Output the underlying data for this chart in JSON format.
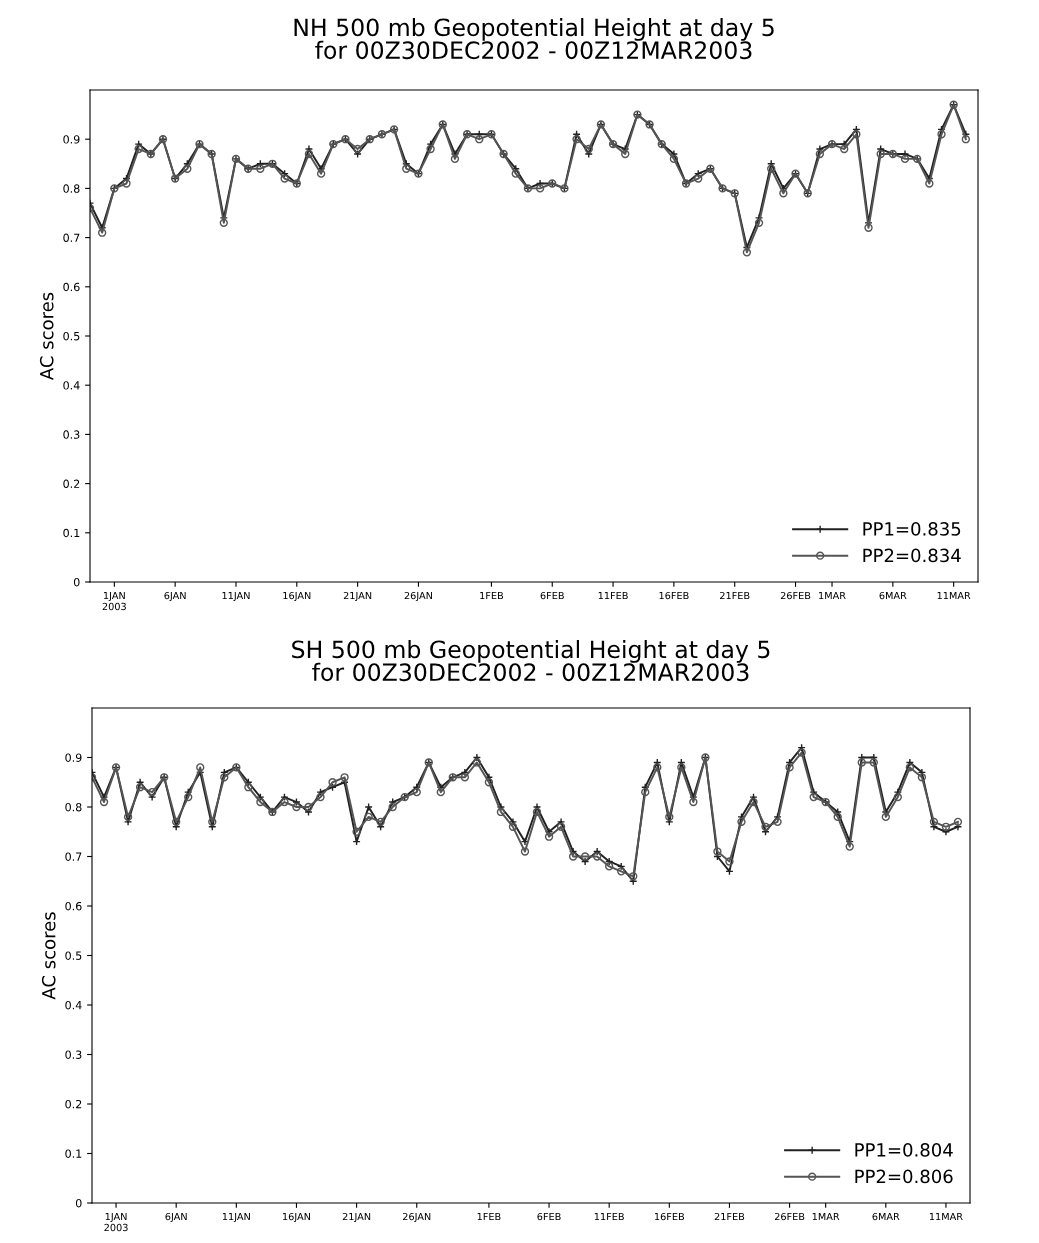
{
  "chart_data": [
    {
      "type": "line",
      "title": "NH 500 mb Geopotential Height at day 5\nfor 00Z30DEC2002 - 00Z12MAR2003",
      "ylabel": "AC scores",
      "x": [
        "2002-12-30",
        "2002-12-31",
        "2003-01-01",
        "2003-01-02",
        "2003-01-03",
        "2003-01-04",
        "2003-01-05",
        "2003-01-06",
        "2003-01-07",
        "2003-01-08",
        "2003-01-09",
        "2003-01-10",
        "2003-01-11",
        "2003-01-12",
        "2003-01-13",
        "2003-01-14",
        "2003-01-15",
        "2003-01-16",
        "2003-01-17",
        "2003-01-18",
        "2003-01-19",
        "2003-01-20",
        "2003-01-21",
        "2003-01-22",
        "2003-01-23",
        "2003-01-24",
        "2003-01-25",
        "2003-01-26",
        "2003-01-27",
        "2003-01-28",
        "2003-01-29",
        "2003-01-30",
        "2003-01-31",
        "2003-02-01",
        "2003-02-02",
        "2003-02-03",
        "2003-02-04",
        "2003-02-05",
        "2003-02-06",
        "2003-02-07",
        "2003-02-08",
        "2003-02-09",
        "2003-02-10",
        "2003-02-11",
        "2003-02-12",
        "2003-02-13",
        "2003-02-14",
        "2003-02-15",
        "2003-02-16",
        "2003-02-17",
        "2003-02-18",
        "2003-02-19",
        "2003-02-20",
        "2003-02-21",
        "2003-02-22",
        "2003-02-23",
        "2003-02-24",
        "2003-02-25",
        "2003-02-26",
        "2003-02-27",
        "2003-02-28",
        "2003-03-01",
        "2003-03-02",
        "2003-03-03",
        "2003-03-04",
        "2003-03-05",
        "2003-03-06",
        "2003-03-07",
        "2003-03-08",
        "2003-03-09",
        "2003-03-10",
        "2003-03-11",
        "2003-03-12"
      ],
      "series": [
        {
          "name": "PP1=0.835",
          "color": "#222222",
          "marker": "cross",
          "values": [
            0.77,
            0.72,
            0.8,
            0.82,
            0.89,
            0.87,
            0.9,
            0.82,
            0.85,
            0.89,
            0.87,
            0.74,
            0.86,
            0.84,
            0.85,
            0.85,
            0.83,
            0.81,
            0.88,
            0.84,
            0.89,
            0.9,
            0.87,
            0.9,
            0.91,
            0.92,
            0.85,
            0.83,
            0.89,
            0.93,
            0.87,
            0.91,
            0.91,
            0.91,
            0.87,
            0.84,
            0.8,
            0.81,
            0.81,
            0.8,
            0.91,
            0.87,
            0.93,
            0.89,
            0.88,
            0.95,
            0.93,
            0.89,
            0.87,
            0.81,
            0.83,
            0.84,
            0.8,
            0.79,
            0.68,
            0.74,
            0.85,
            0.8,
            0.83,
            0.79,
            0.88,
            0.89,
            0.89,
            0.92,
            0.73,
            0.88,
            0.87,
            0.87,
            0.86,
            0.82,
            0.92,
            0.97,
            0.91
          ]
        },
        {
          "name": "PP2=0.834",
          "color": "#555555",
          "marker": "circle",
          "values": [
            0.76,
            0.71,
            0.8,
            0.81,
            0.88,
            0.87,
            0.9,
            0.82,
            0.84,
            0.89,
            0.87,
            0.73,
            0.86,
            0.84,
            0.84,
            0.85,
            0.82,
            0.81,
            0.87,
            0.83,
            0.89,
            0.9,
            0.88,
            0.9,
            0.91,
            0.92,
            0.84,
            0.83,
            0.88,
            0.93,
            0.86,
            0.91,
            0.9,
            0.91,
            0.87,
            0.83,
            0.8,
            0.8,
            0.81,
            0.8,
            0.9,
            0.88,
            0.93,
            0.89,
            0.87,
            0.95,
            0.93,
            0.89,
            0.86,
            0.81,
            0.82,
            0.84,
            0.8,
            0.79,
            0.67,
            0.73,
            0.84,
            0.79,
            0.83,
            0.79,
            0.87,
            0.89,
            0.88,
            0.91,
            0.72,
            0.87,
            0.87,
            0.86,
            0.86,
            0.81,
            0.91,
            0.97,
            0.9
          ]
        }
      ],
      "xlim": [
        "2002-12-30",
        "2003-03-13"
      ],
      "ylim": [
        0,
        1
      ],
      "yticks": [
        0,
        0.1,
        0.2,
        0.3,
        0.4,
        0.5,
        0.6,
        0.7,
        0.8,
        0.9
      ],
      "xticks": [
        {
          "value": "2003-01-01",
          "label": "1JAN\n2003"
        },
        {
          "value": "2003-01-06",
          "label": "6JAN"
        },
        {
          "value": "2003-01-11",
          "label": "11JAN"
        },
        {
          "value": "2003-01-16",
          "label": "16JAN"
        },
        {
          "value": "2003-01-21",
          "label": "21JAN"
        },
        {
          "value": "2003-01-26",
          "label": "26JAN"
        },
        {
          "value": "2003-02-01",
          "label": "1FEB"
        },
        {
          "value": "2003-02-06",
          "label": "6FEB"
        },
        {
          "value": "2003-02-11",
          "label": "11FEB"
        },
        {
          "value": "2003-02-16",
          "label": "16FEB"
        },
        {
          "value": "2003-02-21",
          "label": "21FEB"
        },
        {
          "value": "2003-02-26",
          "label": "26FEB"
        },
        {
          "value": "2003-03-01",
          "label": "1MAR"
        },
        {
          "value": "2003-03-06",
          "label": "6MAR"
        },
        {
          "value": "2003-03-11",
          "label": "11MAR"
        }
      ],
      "legend": "bottom right",
      "line_style": "solid",
      "grid": false
    },
    {
      "type": "line",
      "title": "SH 500 mb Geopotential Height at day 5\nfor 00Z30DEC2002 - 00Z12MAR2003",
      "ylabel": "AC scores",
      "x": [
        "2002-12-30",
        "2002-12-31",
        "2003-01-01",
        "2003-01-02",
        "2003-01-03",
        "2003-01-04",
        "2003-01-05",
        "2003-01-06",
        "2003-01-07",
        "2003-01-08",
        "2003-01-09",
        "2003-01-10",
        "2003-01-11",
        "2003-01-12",
        "2003-01-13",
        "2003-01-14",
        "2003-01-15",
        "2003-01-16",
        "2003-01-17",
        "2003-01-18",
        "2003-01-19",
        "2003-01-20",
        "2003-01-21",
        "2003-01-22",
        "2003-01-23",
        "2003-01-24",
        "2003-01-25",
        "2003-01-26",
        "2003-01-27",
        "2003-01-28",
        "2003-01-29",
        "2003-01-30",
        "2003-01-31",
        "2003-02-01",
        "2003-02-02",
        "2003-02-03",
        "2003-02-04",
        "2003-02-05",
        "2003-02-06",
        "2003-02-07",
        "2003-02-08",
        "2003-02-09",
        "2003-02-10",
        "2003-02-11",
        "2003-02-12",
        "2003-02-13",
        "2003-02-14",
        "2003-02-15",
        "2003-02-16",
        "2003-02-17",
        "2003-02-18",
        "2003-02-19",
        "2003-02-20",
        "2003-02-21",
        "2003-02-22",
        "2003-02-23",
        "2003-02-24",
        "2003-02-25",
        "2003-02-26",
        "2003-02-27",
        "2003-02-28",
        "2003-03-01",
        "2003-03-02",
        "2003-03-03",
        "2003-03-04",
        "2003-03-05",
        "2003-03-06",
        "2003-03-07",
        "2003-03-08",
        "2003-03-09",
        "2003-03-10",
        "2003-03-11",
        "2003-03-12"
      ],
      "series": [
        {
          "name": "PP1=0.804",
          "color": "#222222",
          "marker": "cross",
          "values": [
            0.87,
            0.82,
            0.88,
            0.77,
            0.85,
            0.82,
            0.86,
            0.76,
            0.83,
            0.87,
            0.76,
            0.87,
            0.88,
            0.85,
            0.82,
            0.79,
            0.82,
            0.81,
            0.79,
            0.83,
            0.84,
            0.85,
            0.73,
            0.8,
            0.76,
            0.81,
            0.82,
            0.84,
            0.89,
            0.84,
            0.86,
            0.87,
            0.9,
            0.86,
            0.8,
            0.77,
            0.73,
            0.8,
            0.75,
            0.77,
            0.71,
            0.69,
            0.71,
            0.69,
            0.68,
            0.65,
            0.84,
            0.89,
            0.77,
            0.89,
            0.82,
            0.9,
            0.7,
            0.67,
            0.78,
            0.82,
            0.75,
            0.78,
            0.89,
            0.92,
            0.83,
            0.81,
            0.79,
            0.73,
            0.9,
            0.9,
            0.79,
            0.83,
            0.89,
            0.87,
            0.76,
            0.75,
            0.76
          ]
        },
        {
          "name": "PP2=0.806",
          "color": "#555555",
          "marker": "circle",
          "values": [
            0.86,
            0.81,
            0.88,
            0.78,
            0.84,
            0.83,
            0.86,
            0.77,
            0.82,
            0.88,
            0.77,
            0.86,
            0.88,
            0.84,
            0.81,
            0.79,
            0.81,
            0.8,
            0.8,
            0.82,
            0.85,
            0.86,
            0.75,
            0.78,
            0.77,
            0.8,
            0.82,
            0.83,
            0.89,
            0.83,
            0.86,
            0.86,
            0.89,
            0.85,
            0.79,
            0.76,
            0.71,
            0.79,
            0.74,
            0.76,
            0.7,
            0.7,
            0.7,
            0.68,
            0.67,
            0.66,
            0.83,
            0.88,
            0.78,
            0.88,
            0.81,
            0.9,
            0.71,
            0.69,
            0.77,
            0.81,
            0.76,
            0.77,
            0.88,
            0.91,
            0.82,
            0.81,
            0.78,
            0.72,
            0.89,
            0.89,
            0.78,
            0.82,
            0.88,
            0.86,
            0.77,
            0.76,
            0.77
          ]
        }
      ],
      "xlim": [
        "2002-12-30",
        "2003-03-13"
      ],
      "ylim": [
        0,
        1
      ],
      "yticks": [
        0,
        0.1,
        0.2,
        0.3,
        0.4,
        0.5,
        0.6,
        0.7,
        0.8,
        0.9
      ],
      "xticks": [
        {
          "value": "2003-01-01",
          "label": "1JAN\n2003"
        },
        {
          "value": "2003-01-06",
          "label": "6JAN"
        },
        {
          "value": "2003-01-11",
          "label": "11JAN"
        },
        {
          "value": "2003-01-16",
          "label": "16JAN"
        },
        {
          "value": "2003-01-21",
          "label": "21JAN"
        },
        {
          "value": "2003-01-26",
          "label": "26JAN"
        },
        {
          "value": "2003-02-01",
          "label": "1FEB"
        },
        {
          "value": "2003-02-06",
          "label": "6FEB"
        },
        {
          "value": "2003-02-11",
          "label": "11FEB"
        },
        {
          "value": "2003-02-16",
          "label": "16FEB"
        },
        {
          "value": "2003-02-21",
          "label": "21FEB"
        },
        {
          "value": "2003-02-26",
          "label": "26FEB"
        },
        {
          "value": "2003-03-01",
          "label": "1MAR"
        },
        {
          "value": "2003-03-06",
          "label": "6MAR"
        },
        {
          "value": "2003-03-11",
          "label": "11MAR"
        }
      ],
      "legend": "bottom right",
      "line_style": "solid",
      "grid": false
    }
  ]
}
